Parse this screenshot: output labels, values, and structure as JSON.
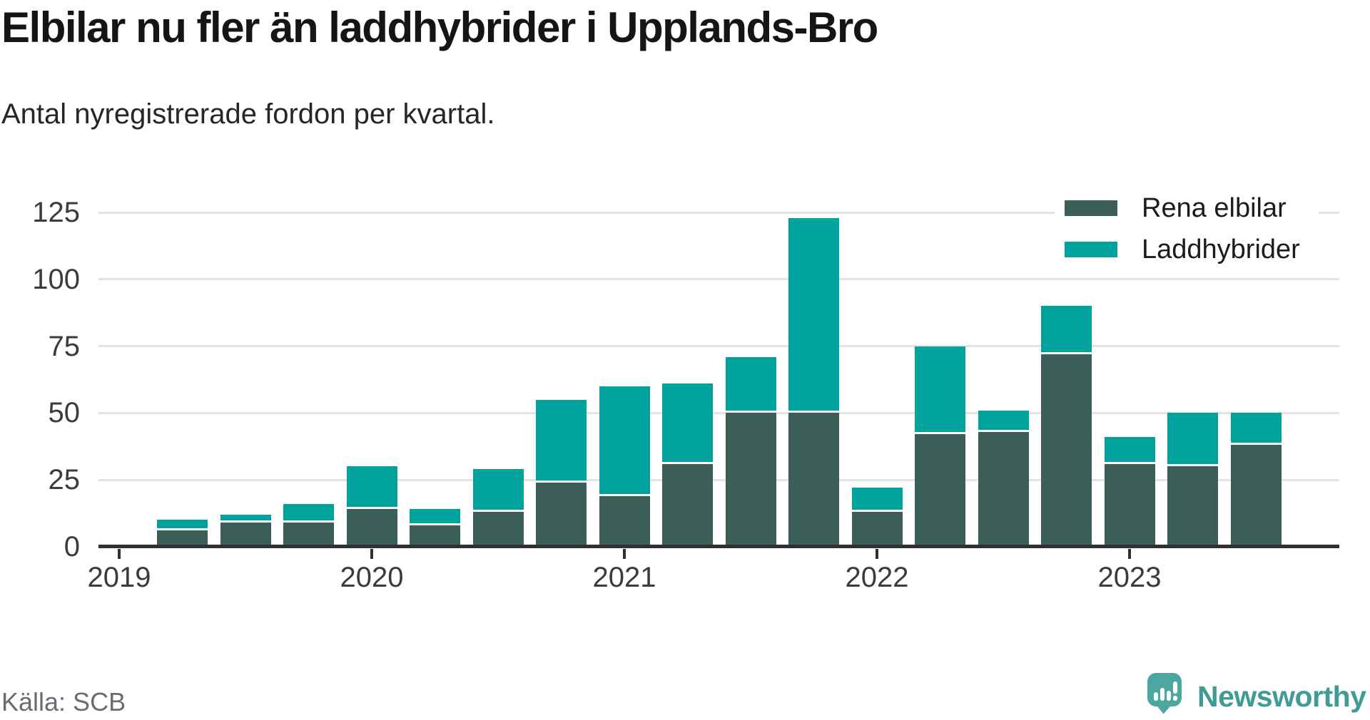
{
  "header": {
    "title": "Elbilar nu fler än laddhybrider i Upplands-Bro",
    "subtitle": "Antal nyregistrerade fordon per kvartal."
  },
  "legend": [
    {
      "label": "Rena elbilar",
      "color": "#3b5f58"
    },
    {
      "label": "Laddhybrider",
      "color": "#00a39c"
    }
  ],
  "footer": {
    "source": "Källa: SCB",
    "brand": "Newsworthy"
  },
  "colors": {
    "rena_elbilar": "#3b5f58",
    "laddhybrider": "#00a39c",
    "gridline": "#e3e3e3",
    "axis": "#303030",
    "tick_label": "#3b3b3b",
    "brand_teal": "#4ba7a0",
    "brand_text": "#3e9b95"
  },
  "chart_data": {
    "type": "bar",
    "stacked": true,
    "title": "Elbilar nu fler än laddhybrider i Upplands-Bro",
    "subtitle": "Antal nyregistrerade fordon per kvartal.",
    "xlabel": "",
    "ylabel": "",
    "categories": [
      "2019 K1",
      "2019 K2",
      "2019 K3",
      "2019 K4",
      "2020 K1",
      "2020 K2",
      "2020 K3",
      "2020 K4",
      "2021 K1",
      "2021 K2",
      "2021 K3",
      "2021 K4",
      "2022 K1",
      "2022 K2",
      "2022 K3",
      "2022 K4",
      "2023 K1",
      "2023 K2",
      "2023 K3"
    ],
    "series": [
      {
        "name": "Rena elbilar",
        "color": "#3b5f58",
        "values": [
          0,
          6,
          9,
          9,
          14,
          8,
          13,
          24,
          19,
          31,
          50,
          50,
          13,
          42,
          43,
          72,
          31,
          30,
          38
        ]
      },
      {
        "name": "Laddhybrider",
        "color": "#00a39c",
        "values": [
          0,
          4,
          3,
          7,
          16,
          6,
          16,
          31,
          41,
          30,
          21,
          73,
          9,
          33,
          8,
          18,
          10,
          20,
          12
        ]
      }
    ],
    "x_tick_labels": [
      "2019",
      "2020",
      "2021",
      "2022",
      "2023"
    ],
    "x_tick_category_indexes": [
      0,
      4,
      8,
      12,
      16
    ],
    "y_ticks": [
      0,
      25,
      50,
      75,
      100,
      125
    ],
    "ylim": [
      0,
      125
    ],
    "grid": "horizontal",
    "legend_position": "top-right",
    "source": "Källa: SCB"
  }
}
